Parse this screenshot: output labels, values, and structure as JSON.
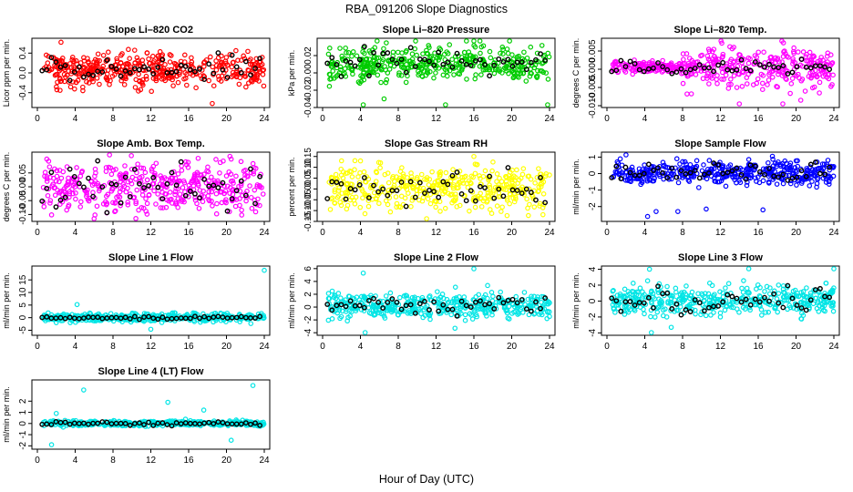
{
  "figure": {
    "title": "RBA_091206  Slope Diagnostics",
    "xlabel": "Hour of Day (UTC)"
  },
  "chart_data": [
    {
      "type": "scatter",
      "title": "Slope Li–820 CO2",
      "ylabel": "Licor ppm per min.",
      "color": "#ff0000",
      "xlim": [
        0,
        24
      ],
      "ylim": [
        -0.7,
        0.7
      ],
      "xticks": [
        0,
        4,
        8,
        12,
        16,
        20,
        24
      ],
      "yticks": [
        -0.4,
        0.0,
        0.4
      ],
      "ytick_labels": [
        "-0.4",
        "0.0",
        "0.4"
      ],
      "center": 0.05,
      "spread": 0.17,
      "overlay_spread": 0.14,
      "extremes": [
        [
          2.5,
          0.62
        ],
        [
          18.5,
          -0.62
        ],
        [
          21,
          0.45
        ],
        [
          7.5,
          0.42
        ]
      ]
    },
    {
      "type": "scatter",
      "title": "Slope Li–820 Pressure",
      "ylabel": "kPa per min.",
      "color": "#00cc00",
      "xlim": [
        0,
        24
      ],
      "ylim": [
        -0.04,
        0.04
      ],
      "xticks": [
        0,
        4,
        8,
        12,
        16,
        20,
        24
      ],
      "yticks": [
        -0.04,
        -0.02,
        0.0,
        0.02
      ],
      "ytick_labels": [
        "-0.04",
        "-0.02",
        "0.00",
        "0.02"
      ],
      "center": 0.011,
      "spread": 0.01,
      "overlay_spread": 0.007,
      "extremes": [
        [
          4.3,
          -0.037
        ],
        [
          13,
          -0.037
        ],
        [
          23.8,
          -0.037
        ],
        [
          6.5,
          -0.03
        ],
        [
          16,
          0.037
        ]
      ]
    },
    {
      "type": "scatter",
      "title": "Slope Li–820 Temp.",
      "ylabel": "degrees C per min.",
      "color": "#ff00ff",
      "xlim": [
        0,
        24
      ],
      "ylim": [
        -0.0105,
        0.0085
      ],
      "xticks": [
        0,
        4,
        8,
        12,
        16,
        20,
        24
      ],
      "yticks": [
        -0.01,
        -0.005,
        0.0,
        0.005
      ],
      "ytick_labels": [
        "-0.010",
        "-0.005",
        "0.000",
        "0.005"
      ],
      "center": 0.0006,
      "spread": 0.0008,
      "overlay_spread": 0.0009,
      "wide_from": 8,
      "wide_spread": 0.0028,
      "extremes": [
        [
          18.5,
          0.008
        ],
        [
          18.6,
          -0.0095
        ],
        [
          20.5,
          -0.0085
        ],
        [
          14,
          -0.0095
        ]
      ]
    },
    {
      "type": "scatter",
      "title": "Slope Amb. Box Temp.",
      "ylabel": "degrees C per min.",
      "color": "#ff00ff",
      "xlim": [
        0,
        24
      ],
      "ylim": [
        -0.125,
        0.125
      ],
      "xticks": [
        0,
        4,
        8,
        12,
        16,
        20,
        24
      ],
      "yticks": [
        -0.1,
        -0.05,
        0.0,
        0.05
      ],
      "ytick_labels": [
        "-0.10",
        "-0.05",
        "0.00",
        "0.05"
      ],
      "center": 0.0,
      "spread": 0.045,
      "overlay_spread": 0.04,
      "extremes": [
        [
          1,
          0.1
        ],
        [
          20.5,
          0.1
        ],
        [
          6,
          -0.115
        ]
      ]
    },
    {
      "type": "scatter",
      "title": "Slope Gas Stream RH",
      "ylabel": "percent per min.",
      "color": "#ffff00",
      "xlim": [
        0,
        24
      ],
      "ylim": [
        -0.15,
        0.17
      ],
      "xticks": [
        0,
        4,
        8,
        12,
        16,
        20,
        24
      ],
      "yticks": [
        -0.15,
        -0.1,
        -0.05,
        0.0,
        0.05,
        0.1,
        0.15
      ],
      "ytick_labels": [
        "-0.15",
        "-0.10",
        "-0.05",
        "0.00",
        "0.05",
        "0.10",
        "0.15"
      ],
      "center": 0.005,
      "spread": 0.05,
      "overlay_spread": 0.04,
      "extremes": [
        [
          11,
          -0.14
        ],
        [
          16,
          0.15
        ],
        [
          2,
          0.13
        ]
      ]
    },
    {
      "type": "scatter",
      "title": "Slope Sample Flow",
      "ylabel": "ml/min per min.",
      "color": "#0000ff",
      "xlim": [
        0,
        24
      ],
      "ylim": [
        -2.9,
        1.3
      ],
      "xticks": [
        0,
        4,
        8,
        12,
        16,
        20,
        24
      ],
      "yticks": [
        -2,
        -1,
        0,
        1
      ],
      "ytick_labels": [
        "-2",
        "-1",
        "0",
        "1"
      ],
      "center": 0.05,
      "spread": 0.35,
      "overlay_spread": 0.25,
      "extremes": [
        [
          4.3,
          -2.6
        ],
        [
          5.2,
          -2.3
        ],
        [
          7.5,
          -2.3
        ],
        [
          10.5,
          -2.15
        ],
        [
          16.5,
          -2.2
        ],
        [
          17.5,
          1.05
        ]
      ]
    },
    {
      "type": "scatter",
      "title": "Slope Line 1 Flow",
      "ylabel": "ml/min per min.",
      "color": "#00e5e5",
      "xlim": [
        0,
        24
      ],
      "ylim": [
        -7,
        20.5
      ],
      "xticks": [
        0,
        4,
        8,
        12,
        16,
        20,
        24
      ],
      "yticks": [
        -5,
        0,
        5,
        10,
        15
      ],
      "ytick_labels": [
        "-5",
        "0",
        "5",
        "10",
        "15"
      ],
      "center": 0.0,
      "spread": 0.8,
      "overlay_spread": 0.3,
      "extremes": [
        [
          24,
          18.8
        ],
        [
          4.2,
          5.2
        ],
        [
          12,
          -4.6
        ]
      ]
    },
    {
      "type": "scatter",
      "title": "Slope Line 2 Flow",
      "ylabel": "ml/min per min.",
      "color": "#00e5e5",
      "xlim": [
        0,
        24
      ],
      "ylim": [
        -4.4,
        6.4
      ],
      "xticks": [
        0,
        4,
        8,
        12,
        16,
        20,
        24
      ],
      "yticks": [
        -4,
        -2,
        0,
        2,
        4,
        6
      ],
      "ytick_labels": [
        "-4",
        "-2",
        "0",
        "2",
        "4",
        "6"
      ],
      "center": 0.2,
      "spread": 1.0,
      "overlay_spread": 0.7,
      "extremes": [
        [
          4.3,
          5.3
        ],
        [
          16,
          6
        ],
        [
          4.5,
          -4.2
        ],
        [
          14,
          -3.3
        ]
      ]
    },
    {
      "type": "scatter",
      "title": "Slope Line 3 Flow",
      "ylabel": "ml/min per min.",
      "color": "#00e5e5",
      "xlim": [
        0,
        24
      ],
      "ylim": [
        -4.3,
        4.4
      ],
      "xticks": [
        0,
        4,
        8,
        12,
        16,
        20,
        24
      ],
      "yticks": [
        -4,
        -2,
        0,
        2,
        4
      ],
      "ytick_labels": [
        "-4",
        "-2",
        "0",
        "2",
        "4"
      ],
      "center": 0.1,
      "spread": 0.9,
      "overlay_spread": 0.7,
      "extremes": [
        [
          4.5,
          4
        ],
        [
          15,
          4.2
        ],
        [
          24,
          4.2
        ],
        [
          4.7,
          -4
        ],
        [
          6.8,
          -3.3
        ]
      ]
    },
    {
      "type": "scatter",
      "title": "Slope Line 4 (LT) Flow",
      "ylabel": "ml/min per min.",
      "color": "#00e5e5",
      "xlim": [
        0,
        24
      ],
      "ylim": [
        -2.3,
        3.9
      ],
      "xticks": [
        0,
        4,
        8,
        12,
        16,
        20,
        24
      ],
      "yticks": [
        -2,
        -1,
        0,
        1,
        2
      ],
      "ytick_labels": [
        "-2",
        "-1",
        "0",
        "1",
        "2"
      ],
      "center": 0.0,
      "spread": 0.12,
      "overlay_spread": 0.08,
      "extremes": [
        [
          4.9,
          3
        ],
        [
          13.8,
          1.9
        ],
        [
          22.8,
          3.4
        ],
        [
          17.6,
          1.2
        ],
        [
          1.5,
          -1.9
        ],
        [
          2,
          0.9
        ],
        [
          20.5,
          -1.5
        ]
      ]
    }
  ]
}
